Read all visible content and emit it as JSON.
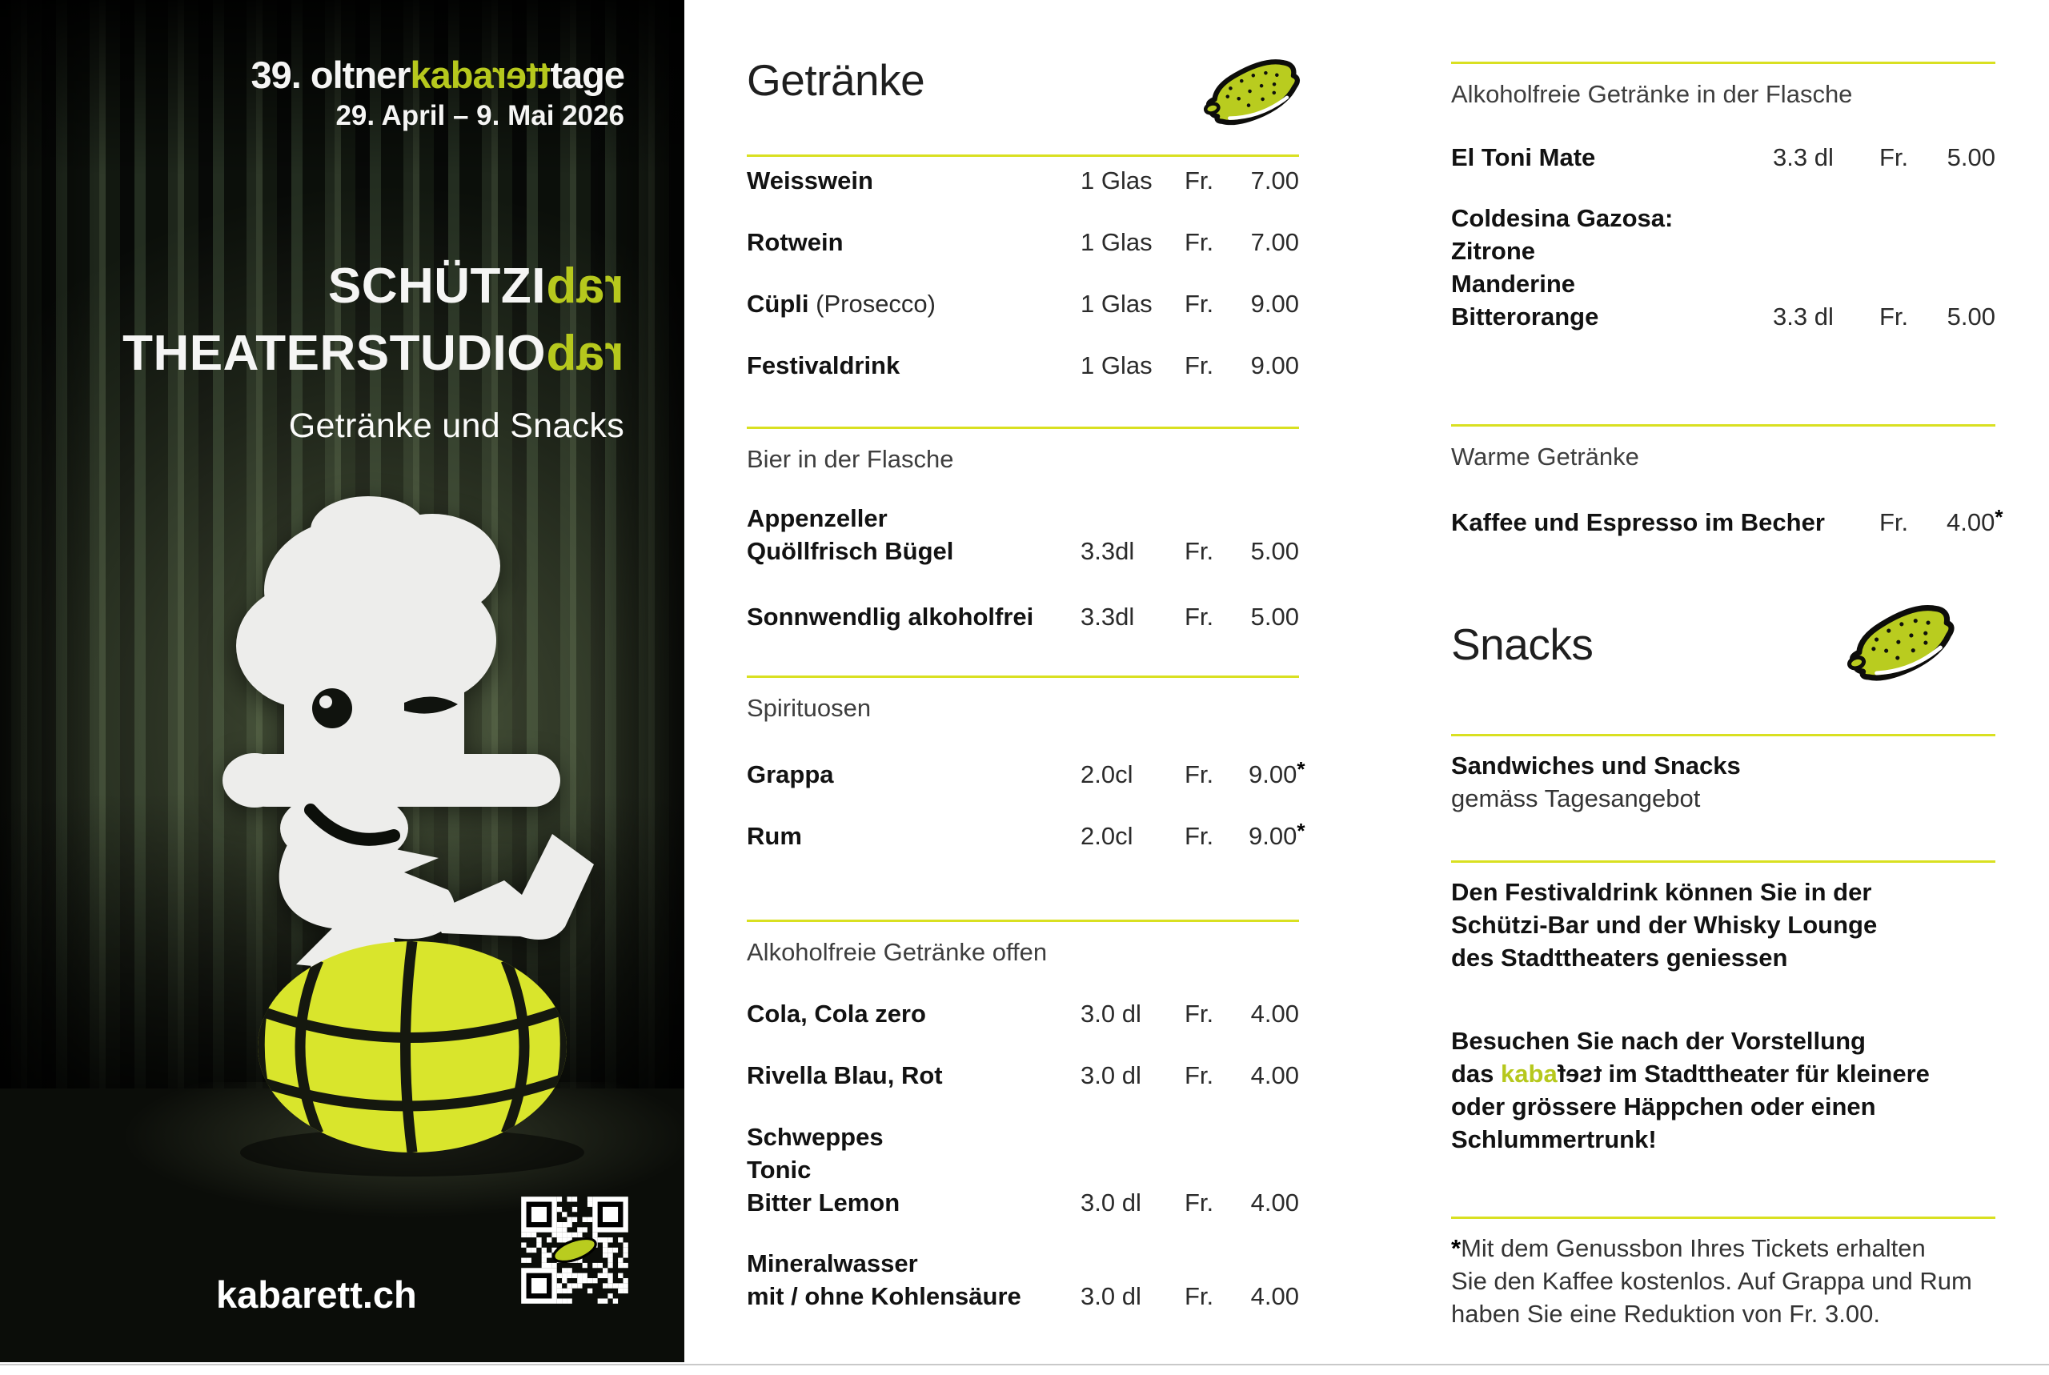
{
  "colors": {
    "accent_green": "#b6c81d",
    "divider_yellow": "#d9e021",
    "globe_green": "#d9e52c",
    "pickle_green": "#b9cc1f"
  },
  "poster": {
    "logo": {
      "white_prefix": "39. oltner",
      "green": "kaba",
      "green_mirrored": "rett",
      "white_suffix": "tage"
    },
    "dates": "29. April – 9. Mai 2026",
    "venue_line1_white": "SCHÜTZI",
    "venue_line1_green": "bar",
    "venue_line2_white": "THEATERSTUDIO",
    "venue_line2_green": "bar",
    "subtitle": "Getränke und Snacks",
    "website": "kabarett.ch"
  },
  "middle": {
    "title": "Getränke",
    "wine": {
      "items": [
        {
          "name": "Weisswein",
          "qty": "1 Glas",
          "cur": "Fr.",
          "price": "7.00"
        },
        {
          "name": "Rotwein",
          "qty": "1 Glas",
          "cur": "Fr.",
          "price": "7.00"
        },
        {
          "name": "Cüpli",
          "note": "(Prosecco)",
          "qty": "1 Glas",
          "cur": "Fr.",
          "price": "9.00"
        },
        {
          "name": "Festivaldrink",
          "qty": "1 Glas",
          "cur": "Fr.",
          "price": "9.00"
        }
      ]
    },
    "beer": {
      "header": "Bier in der Flasche",
      "items": [
        {
          "line1": "Appenzeller",
          "line2": "Quöllfrisch Bügel",
          "qty": "3.3dl",
          "cur": "Fr.",
          "price": "5.00"
        },
        {
          "name": "Sonnwendlig alkoholfrei",
          "qty": "3.3dl",
          "cur": "Fr.",
          "price": "5.00"
        }
      ]
    },
    "spirits": {
      "header": "Spirituosen",
      "items": [
        {
          "name": "Grappa",
          "qty": "2.0cl",
          "cur": "Fr.",
          "price": "9.00",
          "star": "*"
        },
        {
          "name": "Rum",
          "qty": "2.0cl",
          "cur": "Fr.",
          "price": "9.00",
          "star": "*"
        }
      ]
    },
    "soft_open": {
      "header": "Alkoholfreie Getränke offen",
      "items": [
        {
          "name": "Cola, Cola zero",
          "qty": "3.0 dl",
          "cur": "Fr.",
          "price": "4.00"
        },
        {
          "name": "Rivella Blau, Rot",
          "qty": "3.0 dl",
          "cur": "Fr.",
          "price": "4.00"
        },
        {
          "line1": "Schweppes",
          "line2": "Tonic",
          "line3": "Bitter Lemon",
          "qty": "3.0 dl",
          "cur": "Fr.",
          "price": "4.00"
        },
        {
          "line1": "Mineralwasser",
          "line2": "mit / ohne Kohlensäure",
          "qty": "3.0 dl",
          "cur": "Fr.",
          "price": "4.00"
        }
      ]
    }
  },
  "right": {
    "bottled": {
      "header": "Alkoholfreie Getränke in der Flasche",
      "items": [
        {
          "name": "El Toni Mate",
          "qty": "3.3 dl",
          "cur": "Fr.",
          "price": "5.00"
        },
        {
          "line1": "Coldesina Gazosa:",
          "line2": "Zitrone",
          "line3": "Manderine",
          "line4": "Bitterorange",
          "qty": "3.3 dl",
          "cur": "Fr.",
          "price": "5.00"
        }
      ]
    },
    "warm": {
      "header": "Warme Getränke",
      "item": {
        "name": "Kaffee und Espresso im Becher",
        "cur": "Fr.",
        "price": "4.00",
        "star": "*"
      }
    },
    "snacks": {
      "title": "Snacks",
      "lead_bold": "Sandwiches und Snacks",
      "lead_regular": "gemäss Tagesangebot"
    },
    "note_festivaldrink": {
      "line1": "Den Festivaldrink können Sie in der",
      "line2": "Schützi-Bar und der Whisky Lounge",
      "line3": "des Stadttheaters geniessen"
    },
    "note_kabafest": {
      "line1": "Besuchen Sie nach der Vorstellung",
      "line2_prefix": "das ",
      "logo_green": "kaba",
      "logo_mirrored": "fest",
      "line2_suffix": " im Stadttheater für kleinere",
      "line3": "oder grössere Häppchen oder einen",
      "line4": "Schlummertrunk!"
    },
    "footnote": {
      "star": "*",
      "line1": "Mit dem Genussbon Ihres Tickets erhalten",
      "line2": "Sie den Kaffee kostenlos. Auf Grappa und Rum",
      "line3": "haben Sie eine Reduktion von Fr. 3.00."
    }
  }
}
